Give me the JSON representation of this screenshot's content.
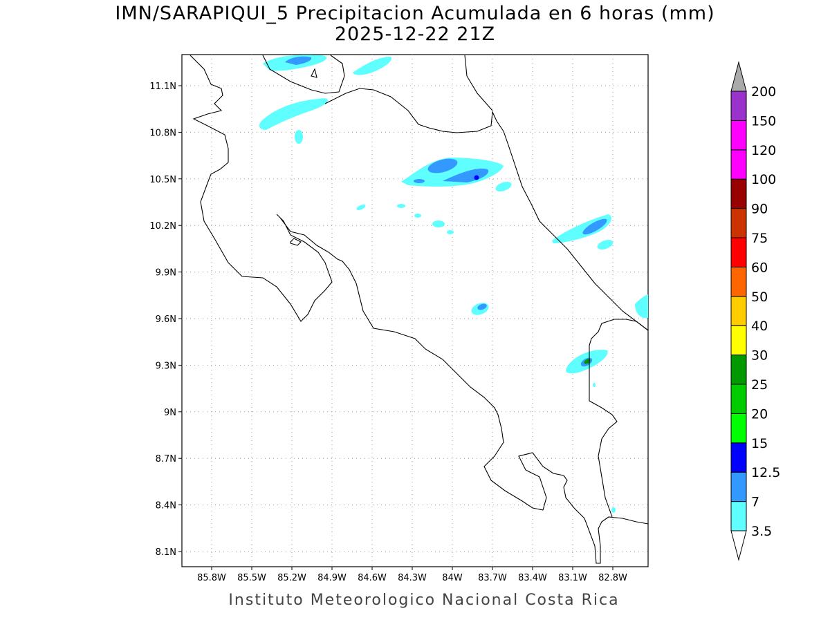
{
  "title_line1": "IMN/SARAPIQUI_5 Precipitacion Acumulada en 6 horas (mm)",
  "title_line2": "2025-12-22 21Z",
  "credit": "Instituto Meteorologico Nacional Costa Rica",
  "map": {
    "lon_ticks": [
      "85.8W",
      "85.5W",
      "85.2W",
      "84.9W",
      "84.6W",
      "84.3W",
      "84W",
      "83.7W",
      "83.4W",
      "83.1W",
      "82.8W"
    ],
    "lat_ticks": [
      "11.1N",
      "10.8N",
      "10.5N",
      "10.2N",
      "9.9N",
      "9.6N",
      "9.3N",
      "9N",
      "8.7N",
      "8.4N",
      "8.1N"
    ]
  },
  "colorbar": {
    "levels": [
      {
        "label": "3.5",
        "color": "#60ffff"
      },
      {
        "label": "7",
        "color": "#3399ff"
      },
      {
        "label": "12.5",
        "color": "#0000ff"
      },
      {
        "label": "15",
        "color": "#00ff00"
      },
      {
        "label": "20",
        "color": "#00cc00"
      },
      {
        "label": "25",
        "color": "#009900"
      },
      {
        "label": "30",
        "color": "#ffff00"
      },
      {
        "label": "40",
        "color": "#ffcc00"
      },
      {
        "label": "50",
        "color": "#ff6600"
      },
      {
        "label": "60",
        "color": "#ff0000"
      },
      {
        "label": "75",
        "color": "#cc3300"
      },
      {
        "label": "90",
        "color": "#990000"
      },
      {
        "label": "100",
        "color": "#ff00ff"
      },
      {
        "label": "120",
        "color": "#ff00ff"
      },
      {
        "label": "150",
        "color": "#9933cc"
      },
      {
        "label": "200",
        "color": "#f2f2f2"
      }
    ],
    "top_arrow_color": "#aaaaaa",
    "bottom_arrow_color": "#ffffff"
  }
}
